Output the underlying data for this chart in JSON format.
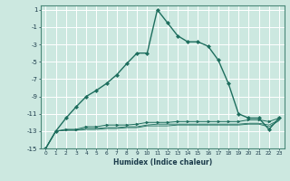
{
  "title": "",
  "xlabel": "Humidex (Indice chaleur)",
  "background_color": "#cce8e0",
  "grid_color": "#ffffff",
  "line_color": "#1e6e5e",
  "xlim": [
    -0.5,
    23.5
  ],
  "ylim": [
    -15,
    1.5
  ],
  "yticks": [
    1,
    -1,
    -3,
    -5,
    -7,
    -9,
    -11,
    -13,
    -15
  ],
  "xticks": [
    0,
    1,
    2,
    3,
    4,
    5,
    6,
    7,
    8,
    9,
    10,
    11,
    12,
    13,
    14,
    15,
    16,
    17,
    18,
    19,
    20,
    21,
    22,
    23
  ],
  "series": [
    {
      "x": [
        0,
        1,
        2,
        3,
        4,
        5,
        6,
        7,
        8,
        9,
        10,
        11,
        12,
        13,
        14,
        15,
        16,
        17,
        18,
        19,
        20,
        21,
        22,
        23
      ],
      "y": [
        -15,
        -13,
        -11.5,
        -10.2,
        -9.0,
        -8.3,
        -7.5,
        -6.5,
        -5.2,
        -4.0,
        -4.0,
        1.0,
        -0.5,
        -2.0,
        -2.7,
        -2.7,
        -3.2,
        -4.8,
        -7.5,
        -11.0,
        -11.5,
        -11.5,
        -12.8,
        -11.5
      ],
      "style": "-",
      "marker": "D",
      "marker_size": 2.0,
      "linewidth": 1.0
    },
    {
      "x": [
        0,
        1,
        2,
        3,
        4,
        5,
        6,
        7,
        8,
        9,
        10,
        11,
        12,
        13,
        14,
        15,
        16,
        17,
        18,
        19,
        20,
        21,
        22,
        23
      ],
      "y": [
        -15,
        -13,
        -12.8,
        -12.8,
        -12.5,
        -12.5,
        -12.3,
        -12.3,
        -12.3,
        -12.2,
        -12.0,
        -12.0,
        -12.0,
        -11.9,
        -11.9,
        -11.9,
        -11.9,
        -11.9,
        -11.9,
        -11.9,
        -11.7,
        -11.7,
        -11.9,
        -11.5
      ],
      "style": "-",
      "marker": ">",
      "marker_size": 2.0,
      "linewidth": 0.7
    },
    {
      "x": [
        0,
        1,
        2,
        3,
        4,
        5,
        6,
        7,
        8,
        9,
        10,
        11,
        12,
        13,
        14,
        15,
        16,
        17,
        18,
        19,
        20,
        21,
        22,
        23
      ],
      "y": [
        -15,
        -13,
        -12.9,
        -12.9,
        -12.7,
        -12.7,
        -12.6,
        -12.6,
        -12.5,
        -12.5,
        -12.3,
        -12.2,
        -12.2,
        -12.2,
        -12.2,
        -12.2,
        -12.2,
        -12.2,
        -12.2,
        -12.2,
        -12.1,
        -12.1,
        -12.3,
        -11.7
      ],
      "style": "-",
      "marker": null,
      "marker_size": 0,
      "linewidth": 0.6
    },
    {
      "x": [
        0,
        1,
        2,
        3,
        4,
        5,
        6,
        7,
        8,
        9,
        10,
        11,
        12,
        13,
        14,
        15,
        16,
        17,
        18,
        19,
        20,
        21,
        22,
        23
      ],
      "y": [
        -15,
        -13,
        -12.9,
        -12.9,
        -12.8,
        -12.8,
        -12.7,
        -12.7,
        -12.6,
        -12.6,
        -12.4,
        -12.4,
        -12.4,
        -12.3,
        -12.3,
        -12.3,
        -12.3,
        -12.3,
        -12.3,
        -12.3,
        -12.2,
        -12.2,
        -12.5,
        -11.8
      ],
      "style": "-",
      "marker": null,
      "marker_size": 0,
      "linewidth": 0.6
    }
  ]
}
